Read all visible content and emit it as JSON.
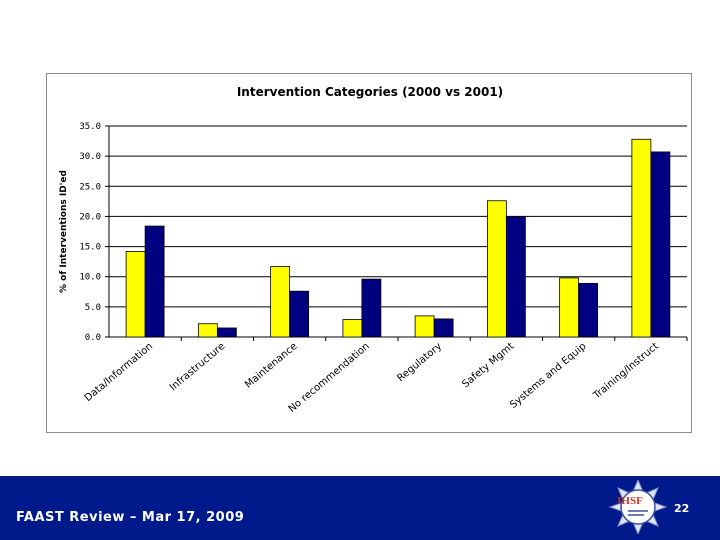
{
  "colors": {
    "series_2000": "#ffff00",
    "series_2001": "#000080",
    "footer_bg": "#001a8c",
    "footer_text": "#ffffff"
  },
  "footer": {
    "text": "FAAST Review – Mar 17, 2009",
    "page_number": "22",
    "logo_text": "IHSF"
  },
  "chart_data": {
    "type": "bar",
    "title": "Intervention Categories (2000 vs 2001)",
    "xlabel": "",
    "ylabel": "% of Interventions ID'ed",
    "ylim": [
      0,
      35
    ],
    "yticks": [
      "0.0",
      "5.0",
      "10.0",
      "15.0",
      "20.0",
      "25.0",
      "30.0",
      "35.0"
    ],
    "categories": [
      "Data/Information",
      "Infrastructure",
      "Maintenance",
      "No recommendation",
      "Regulatory",
      "Safety Mgmt",
      "Systems and Equip",
      "Training/Instruct"
    ],
    "series": [
      {
        "name": "2000",
        "values": [
          14.2,
          2.2,
          11.7,
          2.9,
          3.5,
          22.6,
          9.8,
          32.8
        ]
      },
      {
        "name": "2001",
        "values": [
          18.4,
          1.5,
          7.6,
          9.6,
          3.0,
          20.0,
          8.9,
          30.7
        ]
      }
    ],
    "legend": "none",
    "grid": true
  }
}
